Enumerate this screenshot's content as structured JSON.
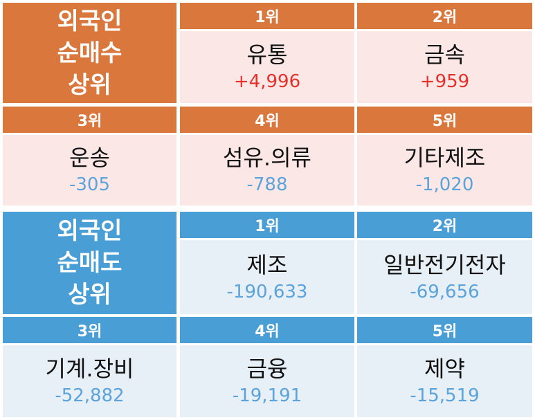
{
  "buy": {
    "title_lines": [
      "외국인",
      "순매수",
      "상위"
    ],
    "items": [
      {
        "rank": "1위",
        "name": "유통",
        "value": "+4,996"
      },
      {
        "rank": "2위",
        "name": "금속",
        "value": "+959"
      },
      {
        "rank": "3위",
        "name": "운송",
        "value": "-305"
      },
      {
        "rank": "4위",
        "name": "섬유.의류",
        "value": "-788"
      },
      {
        "rank": "5위",
        "name": "기타제조",
        "value": "-1,020"
      }
    ]
  },
  "sell": {
    "title_lines": [
      "외국인",
      "순매도",
      "상위"
    ],
    "items": [
      {
        "rank": "1위",
        "name": "제조",
        "value": "-190,633"
      },
      {
        "rank": "2위",
        "name": "일반전기전자",
        "value": "-69,656"
      },
      {
        "rank": "3위",
        "name": "기계.장비",
        "value": "-52,882"
      },
      {
        "rank": "4위",
        "name": "금융",
        "value": "-19,191"
      },
      {
        "rank": "5위",
        "name": "제약",
        "value": "-15,519"
      }
    ]
  },
  "colors": {
    "buy_header": "#d9773d",
    "buy_cell": "#fbe8e6",
    "sell_header": "#4a9ed6",
    "sell_cell": "#e7eff7",
    "positive": "#e8302a",
    "negative": "#5ba3db"
  }
}
